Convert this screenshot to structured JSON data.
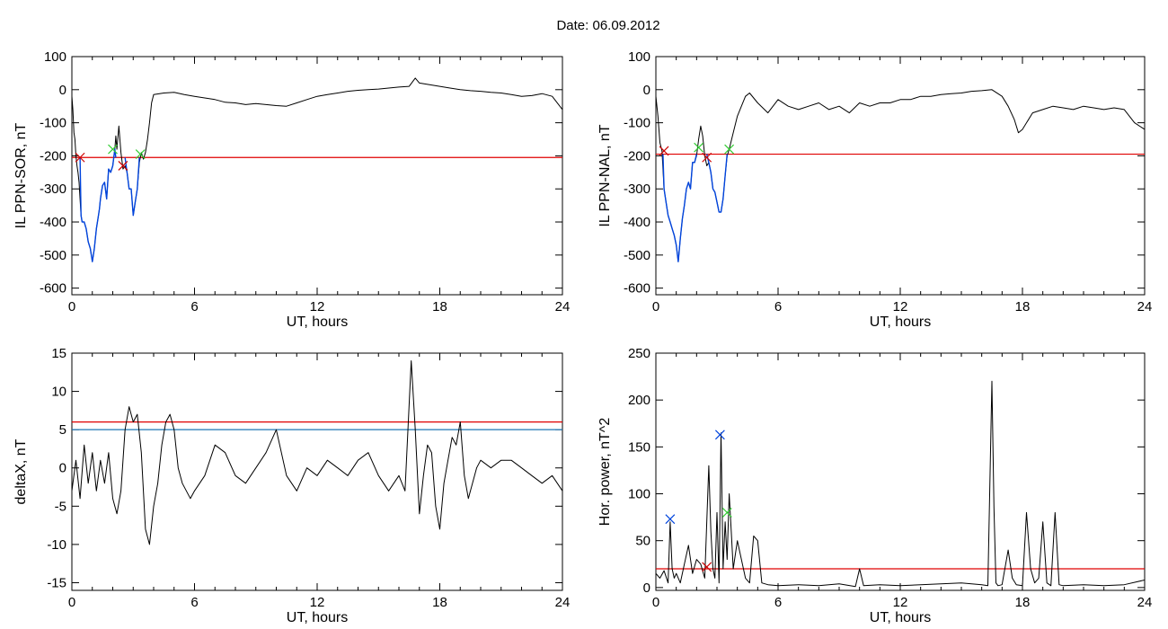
{
  "page_title": "Date:  06.09.2012",
  "colors": {
    "threshold_red": "#e00000",
    "threshold_blue": "#1f77b4",
    "signal_blue": "#0044dd",
    "marker_green": "#33cc33",
    "marker_red": "#cc0000"
  },
  "chart_data": [
    {
      "id": "p1",
      "type": "line",
      "xlabel": "UT, hours",
      "ylabel": "IL PPN-SOR, nT",
      "xlim": [
        0,
        24
      ],
      "ylim": [
        -620,
        100
      ],
      "xticks": [
        0,
        6,
        12,
        18,
        24
      ],
      "yticks": [
        100,
        0,
        -100,
        -200,
        -300,
        -400,
        -500,
        -600
      ],
      "hlines": [
        {
          "y": -205,
          "color": "red"
        }
      ],
      "series": [
        {
          "color": "black",
          "x": [
            0.0,
            0.05,
            0.1,
            0.15,
            0.2,
            0.25,
            0.3,
            0.35,
            0.4,
            0.45,
            0.5,
            0.6,
            0.7,
            0.8,
            0.9,
            1.0,
            1.1,
            1.2,
            1.3,
            1.35,
            1.4,
            1.5,
            1.6,
            1.7,
            1.8,
            1.9,
            2.0,
            2.1,
            2.15,
            2.2,
            2.3,
            2.4,
            2.5,
            2.6,
            2.7,
            2.8,
            2.9,
            3.0,
            3.1,
            3.2,
            3.3,
            3.4,
            3.5,
            3.6,
            3.7,
            3.8,
            3.9,
            4.0,
            4.5,
            5.0,
            5.5,
            6.0,
            6.5,
            7.0,
            7.5,
            8.0,
            8.5,
            9.0,
            9.5,
            10.0,
            10.5,
            11.0,
            11.5,
            12.0,
            12.5,
            13.0,
            13.5,
            14.0,
            14.5,
            15.0,
            15.5,
            16.0,
            16.5,
            16.8,
            17.0,
            17.5,
            18.0,
            18.5,
            19.0,
            19.5,
            20.0,
            20.5,
            21.0,
            21.5,
            22.0,
            22.5,
            23.0,
            23.5,
            24.0
          ],
          "y": [
            -20,
            -60,
            -130,
            -150,
            -200,
            -230,
            -250,
            -280,
            -330,
            -380,
            -400,
            -400,
            -420,
            -460,
            -480,
            -520,
            -480,
            -420,
            -380,
            -360,
            -330,
            -290,
            -280,
            -330,
            -240,
            -250,
            -230,
            -180,
            -140,
            -180,
            -110,
            -190,
            -240,
            -230,
            -250,
            -300,
            -300,
            -380,
            -340,
            -300,
            -220,
            -190,
            -210,
            -190,
            -150,
            -100,
            -40,
            -15,
            -10,
            -8,
            -15,
            -20,
            -25,
            -30,
            -38,
            -40,
            -45,
            -42,
            -45,
            -48,
            -50,
            -40,
            -30,
            -20,
            -15,
            -10,
            -5,
            -2,
            0,
            2,
            5,
            8,
            10,
            35,
            20,
            15,
            10,
            5,
            0,
            -3,
            -5,
            -8,
            -10,
            -15,
            -20,
            -18,
            -12,
            -20,
            -60
          ]
        },
        {
          "color": "blue",
          "x": [
            0.4,
            0.45,
            0.5,
            0.6,
            0.7,
            0.8,
            0.9,
            1.0,
            1.1,
            1.2,
            1.3,
            1.35,
            1.4,
            1.5,
            1.6,
            1.7,
            1.8,
            1.9,
            2.0,
            2.1,
            2.15
          ],
          "y": [
            -205,
            -380,
            -400,
            -400,
            -420,
            -460,
            -480,
            -520,
            -480,
            -420,
            -380,
            -360,
            -330,
            -290,
            -280,
            -330,
            -240,
            -250,
            -230,
            -180,
            -205
          ]
        },
        {
          "color": "blue",
          "x": [
            2.6,
            2.7,
            2.8,
            2.9,
            3.0,
            3.1,
            3.2,
            3.3
          ],
          "y": [
            -205,
            -250,
            -300,
            -300,
            -380,
            -340,
            -300,
            -205
          ]
        }
      ],
      "markers": [
        {
          "x": 0.4,
          "y": -205,
          "color": "red"
        },
        {
          "x": 2.0,
          "y": -180,
          "color": "green"
        },
        {
          "x": 2.5,
          "y": -230,
          "color": "red"
        },
        {
          "x": 3.35,
          "y": -195,
          "color": "green"
        }
      ]
    },
    {
      "id": "p2",
      "type": "line",
      "xlabel": "UT, hours",
      "ylabel": "IL PPN-NAL, nT",
      "xlim": [
        0,
        24
      ],
      "ylim": [
        -620,
        100
      ],
      "xticks": [
        0,
        6,
        12,
        18,
        24
      ],
      "yticks": [
        100,
        0,
        -100,
        -200,
        -300,
        -400,
        -500,
        -600
      ],
      "hlines": [
        {
          "y": -195,
          "color": "red"
        }
      ],
      "series": [
        {
          "color": "black",
          "x": [
            0.0,
            0.1,
            0.2,
            0.3,
            0.4,
            0.5,
            0.6,
            0.7,
            0.8,
            0.9,
            1.0,
            1.1,
            1.2,
            1.3,
            1.4,
            1.5,
            1.6,
            1.7,
            1.8,
            1.9,
            2.0,
            2.1,
            2.2,
            2.3,
            2.4,
            2.5,
            2.6,
            2.7,
            2.8,
            2.9,
            3.0,
            3.1,
            3.2,
            3.3,
            3.4,
            3.5,
            3.6,
            3.8,
            4.0,
            4.2,
            4.4,
            4.6,
            5.0,
            5.5,
            6.0,
            6.5,
            7.0,
            7.5,
            8.0,
            8.5,
            9.0,
            9.5,
            10.0,
            10.5,
            11.0,
            11.5,
            12.0,
            12.5,
            13.0,
            13.5,
            14.0,
            14.5,
            15.0,
            15.5,
            16.0,
            16.5,
            17.0,
            17.3,
            17.6,
            17.8,
            18.0,
            18.5,
            19.0,
            19.5,
            20.0,
            20.5,
            21.0,
            21.5,
            22.0,
            22.5,
            23.0,
            23.5,
            24.0
          ],
          "y": [
            -20,
            -80,
            -160,
            -185,
            -300,
            -340,
            -380,
            -400,
            -420,
            -440,
            -470,
            -520,
            -450,
            -390,
            -350,
            -300,
            -280,
            -300,
            -220,
            -220,
            -200,
            -150,
            -110,
            -140,
            -200,
            -230,
            -220,
            -250,
            -300,
            -310,
            -340,
            -370,
            -370,
            -330,
            -260,
            -200,
            -180,
            -130,
            -80,
            -50,
            -20,
            -10,
            -40,
            -70,
            -30,
            -50,
            -60,
            -50,
            -40,
            -60,
            -50,
            -70,
            -40,
            -50,
            -40,
            -40,
            -30,
            -30,
            -20,
            -20,
            -15,
            -12,
            -10,
            -5,
            -3,
            0,
            -20,
            -50,
            -90,
            -130,
            -120,
            -70,
            -60,
            -50,
            -55,
            -60,
            -50,
            -55,
            -60,
            -55,
            -60,
            -100,
            -120
          ]
        },
        {
          "color": "blue",
          "x": [
            0.35,
            0.4,
            0.5,
            0.6,
            0.7,
            0.8,
            0.9,
            1.0,
            1.1,
            1.2,
            1.3,
            1.4,
            1.5,
            1.6,
            1.7,
            1.8,
            1.9,
            2.0
          ],
          "y": [
            -195,
            -300,
            -340,
            -380,
            -400,
            -420,
            -440,
            -470,
            -520,
            -450,
            -390,
            -350,
            -300,
            -280,
            -300,
            -220,
            -220,
            -195
          ]
        },
        {
          "color": "blue",
          "x": [
            2.5,
            2.6,
            2.7,
            2.8,
            2.9,
            3.0,
            3.1,
            3.2,
            3.3,
            3.4,
            3.5
          ],
          "y": [
            -195,
            -220,
            -250,
            -300,
            -310,
            -340,
            -370,
            -370,
            -330,
            -260,
            -195
          ]
        }
      ],
      "markers": [
        {
          "x": 0.4,
          "y": -185,
          "color": "red"
        },
        {
          "x": 2.1,
          "y": -175,
          "color": "green"
        },
        {
          "x": 2.5,
          "y": -205,
          "color": "red"
        },
        {
          "x": 3.6,
          "y": -180,
          "color": "green"
        }
      ]
    },
    {
      "id": "p3",
      "type": "line",
      "xlabel": "UT, hours",
      "ylabel": "deltaX, nT",
      "xlim": [
        0,
        24
      ],
      "ylim": [
        -16,
        15
      ],
      "xticks": [
        0,
        6,
        12,
        18,
        24
      ],
      "yticks": [
        15,
        10,
        5,
        0,
        -5,
        -10,
        -15
      ],
      "hlines": [
        {
          "y": 6,
          "color": "red"
        },
        {
          "y": 5,
          "color": "blue"
        }
      ],
      "series": [
        {
          "color": "black",
          "x": [
            0.0,
            0.2,
            0.4,
            0.6,
            0.8,
            1.0,
            1.2,
            1.4,
            1.6,
            1.8,
            2.0,
            2.2,
            2.4,
            2.6,
            2.8,
            3.0,
            3.2,
            3.4,
            3.6,
            3.8,
            4.0,
            4.2,
            4.4,
            4.6,
            4.8,
            5.0,
            5.2,
            5.4,
            5.6,
            5.8,
            6.0,
            6.5,
            7.0,
            7.5,
            8.0,
            8.5,
            9.0,
            9.5,
            10.0,
            10.5,
            11.0,
            11.5,
            12.0,
            12.5,
            13.0,
            13.5,
            14.0,
            14.5,
            15.0,
            15.5,
            16.0,
            16.3,
            16.6,
            16.8,
            17.0,
            17.2,
            17.4,
            17.6,
            17.8,
            18.0,
            18.2,
            18.4,
            18.6,
            18.8,
            19.0,
            19.2,
            19.4,
            19.6,
            19.8,
            20.0,
            20.5,
            21.0,
            21.5,
            22.0,
            22.5,
            23.0,
            23.5,
            24.0
          ],
          "y": [
            -3,
            1,
            -4,
            3,
            -2,
            2,
            -3,
            1,
            -2,
            2,
            -4,
            -6,
            -3,
            5,
            8,
            6,
            7,
            2,
            -8,
            -10,
            -5,
            -2,
            3,
            6,
            7,
            5,
            0,
            -2,
            -3,
            -4,
            -3,
            -1,
            3,
            2,
            -1,
            -2,
            0,
            2,
            5,
            -1,
            -3,
            0,
            -1,
            1,
            0,
            -1,
            1,
            2,
            -1,
            -3,
            -1,
            -3,
            14,
            5,
            -6,
            -1,
            3,
            2,
            -5,
            -8,
            -2,
            1,
            4,
            3,
            6,
            -1,
            -4,
            -2,
            0,
            1,
            0,
            1,
            1,
            0,
            -1,
            -2,
            -1,
            -3
          ]
        }
      ],
      "markers": []
    },
    {
      "id": "p4",
      "type": "line",
      "xlabel": "UT, hours",
      "ylabel": "Hor. power, nT^2",
      "xlim": [
        0,
        24
      ],
      "ylim": [
        -3,
        250
      ],
      "xticks": [
        0,
        6,
        12,
        18,
        24
      ],
      "yticks": [
        250,
        200,
        150,
        100,
        50,
        0
      ],
      "hlines": [
        {
          "y": 20,
          "color": "red"
        }
      ],
      "series": [
        {
          "color": "black",
          "x": [
            0.0,
            0.2,
            0.4,
            0.6,
            0.7,
            0.8,
            0.9,
            1.0,
            1.2,
            1.4,
            1.6,
            1.8,
            2.0,
            2.2,
            2.4,
            2.6,
            2.7,
            2.8,
            2.9,
            3.0,
            3.1,
            3.2,
            3.3,
            3.4,
            3.5,
            3.6,
            3.7,
            3.8,
            4.0,
            4.2,
            4.4,
            4.6,
            4.8,
            5.0,
            5.2,
            5.5,
            6.0,
            7.0,
            8.0,
            9.0,
            9.8,
            10.0,
            10.2,
            11.0,
            12.0,
            13.0,
            14.0,
            15.0,
            16.0,
            16.3,
            16.5,
            16.6,
            16.7,
            16.8,
            17.0,
            17.3,
            17.5,
            17.7,
            18.0,
            18.2,
            18.4,
            18.6,
            18.8,
            19.0,
            19.2,
            19.4,
            19.6,
            19.8,
            20.0,
            21.0,
            22.0,
            23.0,
            24.0
          ],
          "y": [
            15,
            10,
            18,
            5,
            70,
            20,
            10,
            15,
            5,
            25,
            45,
            15,
            30,
            25,
            10,
            130,
            60,
            20,
            10,
            80,
            5,
            165,
            20,
            70,
            30,
            100,
            60,
            20,
            50,
            30,
            10,
            5,
            55,
            50,
            5,
            3,
            2,
            3,
            2,
            4,
            1,
            20,
            2,
            3,
            2,
            3,
            4,
            5,
            3,
            2,
            220,
            85,
            5,
            2,
            3,
            40,
            10,
            3,
            2,
            80,
            20,
            5,
            10,
            70,
            5,
            2,
            80,
            3,
            2,
            3,
            2,
            3,
            8
          ]
        }
      ],
      "markers": [
        {
          "x": 0.7,
          "y": 73,
          "color": "blue"
        },
        {
          "x": 3.15,
          "y": 163,
          "color": "blue"
        },
        {
          "x": 3.5,
          "y": 80,
          "color": "green"
        },
        {
          "x": 2.5,
          "y": 22,
          "color": "red"
        }
      ]
    }
  ]
}
